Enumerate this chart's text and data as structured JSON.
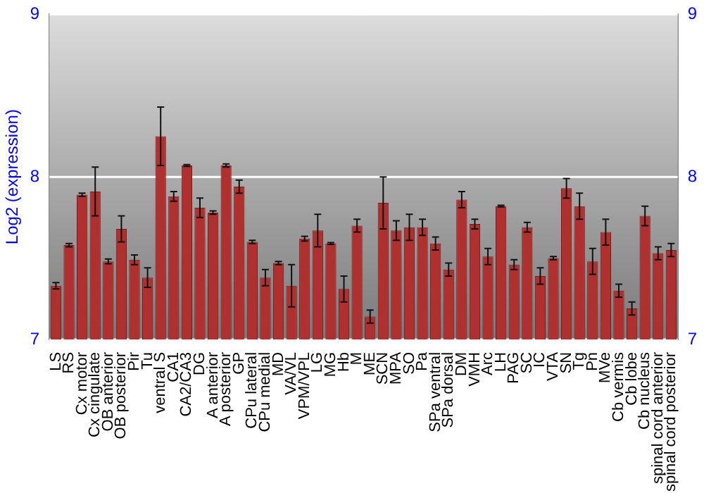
{
  "chart_data": {
    "type": "bar",
    "ylabel": "Log2 (expression)",
    "categories": [
      "LS",
      "RS",
      "Cx motor",
      "Cx cingulate",
      "OB anterior",
      "OB posterior",
      "Pir",
      "Tu",
      "ventral S",
      "CA1",
      "CA2/CA3",
      "DG",
      "A anterior",
      "A posterior",
      "GP",
      "CPu lateral",
      "CPu medial",
      "MD",
      "VA/VL",
      "VPM/VPL",
      "LG",
      "MG",
      "Hb",
      "M",
      "ME",
      "SCN",
      "MPA",
      "SO",
      "Pa",
      "SPa ventral",
      "SPa dorsal",
      "DM",
      "VMH",
      "Arc",
      "LH",
      "PAG",
      "SC",
      "IC",
      "VTA",
      "SN",
      "Tg",
      "Pn",
      "MVe",
      "Cb vermis",
      "Cb lobe",
      "Cb nucleus",
      "spinal cord anterior",
      "spinal cord posterior"
    ],
    "values": [
      7.33,
      7.58,
      7.89,
      7.91,
      7.48,
      7.68,
      7.49,
      7.38,
      8.25,
      7.88,
      8.07,
      7.81,
      7.78,
      8.07,
      7.94,
      7.6,
      7.38,
      7.47,
      7.33,
      7.62,
      7.67,
      7.59,
      7.31,
      7.7,
      7.14,
      7.84,
      7.67,
      7.69,
      7.69,
      7.59,
      7.43,
      7.86,
      7.71,
      7.51,
      7.82,
      7.46,
      7.69,
      7.39,
      7.5,
      7.93,
      7.82,
      7.48,
      7.66,
      7.3,
      7.19,
      7.76,
      7.53,
      7.55
    ],
    "errors": [
      0.02,
      0.01,
      0.01,
      0.15,
      0.015,
      0.08,
      0.03,
      0.06,
      0.18,
      0.03,
      0.005,
      0.06,
      0.01,
      0.01,
      0.04,
      0.01,
      0.05,
      0.01,
      0.13,
      0.015,
      0.1,
      0.005,
      0.08,
      0.04,
      0.04,
      0.16,
      0.06,
      0.08,
      0.05,
      0.04,
      0.04,
      0.05,
      0.03,
      0.05,
      0.005,
      0.03,
      0.03,
      0.05,
      0.01,
      0.06,
      0.08,
      0.08,
      0.08,
      0.04,
      0.04,
      0.06,
      0.04,
      0.04
    ],
    "color": "#b03030",
    "ylim": [
      7,
      9
    ],
    "yticks": [
      7,
      8,
      9
    ],
    "y2lim": [
      7,
      9
    ],
    "y2ticks": [
      7,
      8,
      9
    ],
    "grid": "y",
    "legend": false
  }
}
